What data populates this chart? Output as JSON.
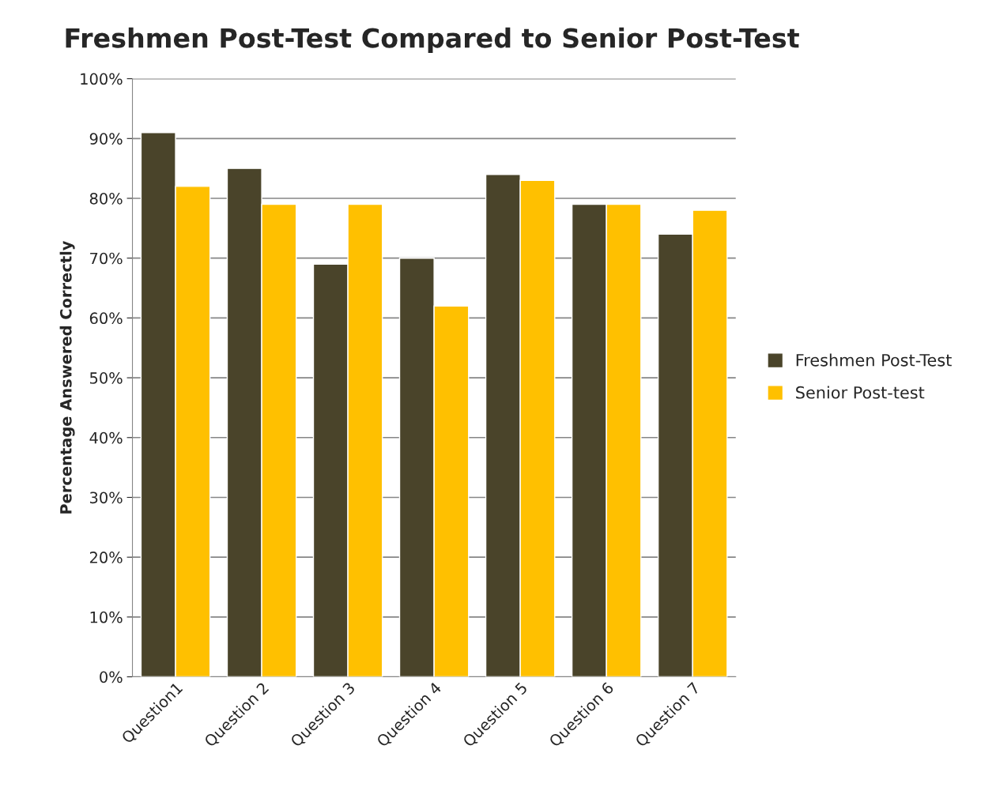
{
  "chart_data": {
    "type": "bar",
    "title": "Freshmen Post-Test Compared to Senior Post-Test",
    "ylabel": "Percentage Answered Correctly",
    "categories": [
      "Question1",
      "Question 2",
      "Question 3",
      "Question 4",
      "Question 5",
      "Question 6",
      "Question 7"
    ],
    "series": [
      {
        "name": "Freshmen Post-Test",
        "color": "#4a442a",
        "values": [
          91,
          85,
          69,
          70,
          84,
          79,
          74
        ]
      },
      {
        "name": "Senior Post-test",
        "color": "#ffc000",
        "values": [
          82,
          79,
          79,
          62,
          83,
          79,
          78
        ]
      }
    ],
    "ylim": [
      0,
      100
    ],
    "yticks": [
      {
        "value": 0,
        "label": "0%"
      },
      {
        "value": 10,
        "label": "10%"
      },
      {
        "value": 20,
        "label": "20%"
      },
      {
        "value": 30,
        "label": "30%"
      },
      {
        "value": 40,
        "label": "40%"
      },
      {
        "value": 50,
        "label": "50%"
      },
      {
        "value": 60,
        "label": "60%"
      },
      {
        "value": 70,
        "label": "70%"
      },
      {
        "value": 80,
        "label": "80%"
      },
      {
        "value": 90,
        "label": "90%"
      },
      {
        "value": 100,
        "label": "100%"
      }
    ],
    "grid": "y",
    "legend": "right"
  }
}
